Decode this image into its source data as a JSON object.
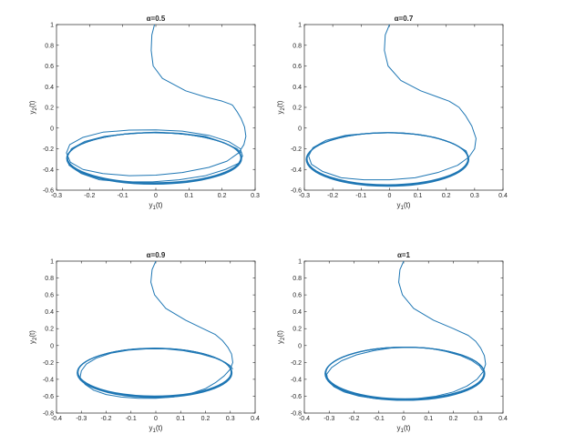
{
  "chart_data": [
    {
      "type": "line",
      "title": "α=0.5",
      "xlabel": "y1(t)",
      "ylabel": "y2(t)",
      "xlim": [
        -0.3,
        0.3
      ],
      "ylim": [
        -0.6,
        1
      ],
      "xticks": [
        "-0.3",
        "-0.2",
        "-0.1",
        "0",
        "0.1",
        "0.2",
        "0.3"
      ],
      "yticks": [
        "-0.6",
        "-0.4",
        "-0.2",
        "0",
        "0.2",
        "0.4",
        "0.6",
        "0.8",
        "1"
      ],
      "series": [
        {
          "x": [
            -0.004,
            -0.012,
            -0.014,
            -0.008,
            0.02,
            0.09,
            0.15,
            0.2,
            0.226,
            0.232,
            0.245,
            0.258,
            0.268,
            0.272,
            0.266,
            0.25,
            0.215,
            0.16,
            0.08,
            0.0,
            -0.08,
            -0.16,
            -0.22,
            -0.258,
            -0.27,
            -0.26,
            -0.22,
            -0.16,
            -0.08,
            0.0,
            0.08,
            0.16,
            0.22,
            0.255,
            0.262,
            0.25,
            0.21,
            0.15,
            0.07,
            -0.01,
            -0.09,
            -0.17,
            -0.225,
            -0.262,
            -0.268,
            -0.255,
            -0.215,
            -0.155,
            -0.075,
            0.0,
            0.075,
            0.15,
            0.205,
            0.245,
            0.258
          ],
          "y": [
            1.0,
            0.9,
            0.75,
            0.6,
            0.48,
            0.36,
            0.3,
            0.26,
            0.23,
            0.22,
            0.16,
            0.09,
            0.01,
            -0.08,
            -0.16,
            -0.24,
            -0.32,
            -0.38,
            -0.43,
            -0.455,
            -0.46,
            -0.44,
            -0.4,
            -0.33,
            -0.24,
            -0.16,
            -0.09,
            -0.04,
            -0.02,
            -0.018,
            -0.03,
            -0.07,
            -0.13,
            -0.2,
            -0.27,
            -0.34,
            -0.4,
            -0.46,
            -0.5,
            -0.52,
            -0.52,
            -0.5,
            -0.44,
            -0.36,
            -0.28,
            -0.2,
            -0.13,
            -0.08,
            -0.05,
            -0.04,
            -0.05,
            -0.08,
            -0.14,
            -0.2,
            -0.24
          ],
          "limit_cycle": {
            "cx": -0.005,
            "cy": -0.29,
            "rx": 0.263,
            "ry": 0.245
          }
        }
      ]
    },
    {
      "type": "line",
      "title": "α=0.7",
      "xlabel": "y1(t)",
      "ylabel": "y2(t)",
      "xlim": [
        -0.3,
        0.4
      ],
      "ylim": [
        -0.6,
        1
      ],
      "xticks": [
        "-0.3",
        "-0.2",
        "-0.1",
        "0",
        "0.1",
        "0.2",
        "0.3",
        "0.4"
      ],
      "yticks": [
        "-0.6",
        "-0.4",
        "-0.2",
        "0",
        "0.2",
        "0.4",
        "0.6",
        "0.8",
        "1"
      ],
      "series": [
        {
          "x": [
            0.0,
            -0.015,
            -0.018,
            -0.005,
            0.04,
            0.11,
            0.17,
            0.21,
            0.228,
            0.245,
            0.268,
            0.29,
            0.305,
            0.3,
            0.28,
            0.24,
            0.17,
            0.09,
            0.0,
            -0.09,
            -0.17,
            -0.235,
            -0.275,
            -0.285,
            -0.27,
            -0.225,
            -0.155,
            -0.07,
            0.01,
            0.09,
            0.16,
            0.225,
            0.27,
            0.278
          ],
          "y": [
            1.0,
            0.9,
            0.75,
            0.6,
            0.46,
            0.36,
            0.3,
            0.26,
            0.23,
            0.2,
            0.12,
            0.02,
            -0.1,
            -0.2,
            -0.28,
            -0.36,
            -0.43,
            -0.48,
            -0.5,
            -0.5,
            -0.48,
            -0.42,
            -0.35,
            -0.27,
            -0.19,
            -0.12,
            -0.07,
            -0.05,
            -0.045,
            -0.06,
            -0.09,
            -0.15,
            -0.22,
            -0.28
          ],
          "limit_cycle": {
            "cx": -0.007,
            "cy": -0.3,
            "rx": 0.285,
            "ry": 0.255
          }
        }
      ]
    },
    {
      "type": "line",
      "title": "α=0.9",
      "xlabel": "y1(t)",
      "ylabel": "y2(t)",
      "xlim": [
        -0.4,
        0.4
      ],
      "ylim": [
        -0.8,
        1
      ],
      "xticks": [
        "-0.4",
        "-0.3",
        "-0.2",
        "-0.1",
        "0",
        "0.1",
        "0.2",
        "0.3",
        "0.4"
      ],
      "yticks": [
        "-0.8",
        "-0.6",
        "-0.4",
        "-0.2",
        "0",
        "0.2",
        "0.4",
        "0.6",
        "0.8",
        "1"
      ],
      "series": [
        {
          "x": [
            0.0,
            -0.015,
            -0.02,
            -0.005,
            0.04,
            0.12,
            0.19,
            0.24,
            0.268,
            0.29,
            0.305,
            0.31,
            0.3,
            0.275,
            0.24,
            0.2,
            0.14,
            0.07,
            0.0,
            -0.07,
            -0.14,
            -0.2,
            -0.25,
            -0.285,
            -0.305,
            -0.3,
            -0.28,
            -0.24,
            -0.18,
            -0.11,
            -0.04,
            0.04,
            0.11,
            0.18,
            0.24,
            0.28,
            0.3,
            0.31
          ],
          "y": [
            1.0,
            0.9,
            0.75,
            0.6,
            0.44,
            0.3,
            0.2,
            0.13,
            0.06,
            -0.02,
            -0.1,
            -0.2,
            -0.28,
            -0.36,
            -0.44,
            -0.51,
            -0.57,
            -0.61,
            -0.625,
            -0.625,
            -0.61,
            -0.58,
            -0.53,
            -0.46,
            -0.38,
            -0.3,
            -0.22,
            -0.15,
            -0.09,
            -0.055,
            -0.04,
            -0.04,
            -0.06,
            -0.1,
            -0.15,
            -0.2,
            -0.24,
            -0.28
          ],
          "limit_cycle": {
            "cx": -0.005,
            "cy": -0.32,
            "rx": 0.31,
            "ry": 0.287
          }
        }
      ]
    },
    {
      "type": "line",
      "title": "α=1",
      "xlabel": "y1(t)",
      "ylabel": "y2(t)",
      "xlim": [
        -0.4,
        0.4
      ],
      "ylim": [
        -0.8,
        1
      ],
      "xticks": [
        "-0.4",
        "-0.3",
        "-0.2",
        "-0.1",
        "0",
        "0.1",
        "0.2",
        "0.3",
        "0.4"
      ],
      "yticks": [
        "-0.8",
        "-0.6",
        "-0.4",
        "-0.2",
        "0",
        "0.2",
        "0.4",
        "0.6",
        "0.8",
        "1"
      ],
      "series": [
        {
          "x": [
            0.0,
            -0.015,
            -0.02,
            -0.005,
            0.04,
            0.12,
            0.2,
            0.26,
            0.29,
            0.31,
            0.325,
            0.33,
            0.32,
            0.295,
            0.255,
            0.2,
            0.13,
            0.05,
            -0.03,
            -0.11,
            -0.18,
            -0.24,
            -0.28,
            -0.305,
            -0.31,
            -0.29,
            -0.25,
            -0.19,
            -0.12,
            -0.05,
            0.03,
            0.1,
            0.17,
            0.23,
            0.275,
            0.305,
            0.318
          ],
          "y": [
            1.0,
            0.9,
            0.75,
            0.6,
            0.44,
            0.3,
            0.2,
            0.12,
            0.05,
            -0.03,
            -0.12,
            -0.22,
            -0.31,
            -0.4,
            -0.48,
            -0.55,
            -0.6,
            -0.63,
            -0.64,
            -0.63,
            -0.6,
            -0.55,
            -0.49,
            -0.42,
            -0.34,
            -0.26,
            -0.18,
            -0.11,
            -0.06,
            -0.03,
            -0.02,
            -0.03,
            -0.07,
            -0.12,
            -0.18,
            -0.24,
            -0.3
          ],
          "limit_cycle": {
            "cx": 0.005,
            "cy": -0.33,
            "rx": 0.32,
            "ry": 0.31
          }
        }
      ]
    }
  ],
  "colors": {
    "line": "#1f77b4",
    "axes": "#262626"
  }
}
